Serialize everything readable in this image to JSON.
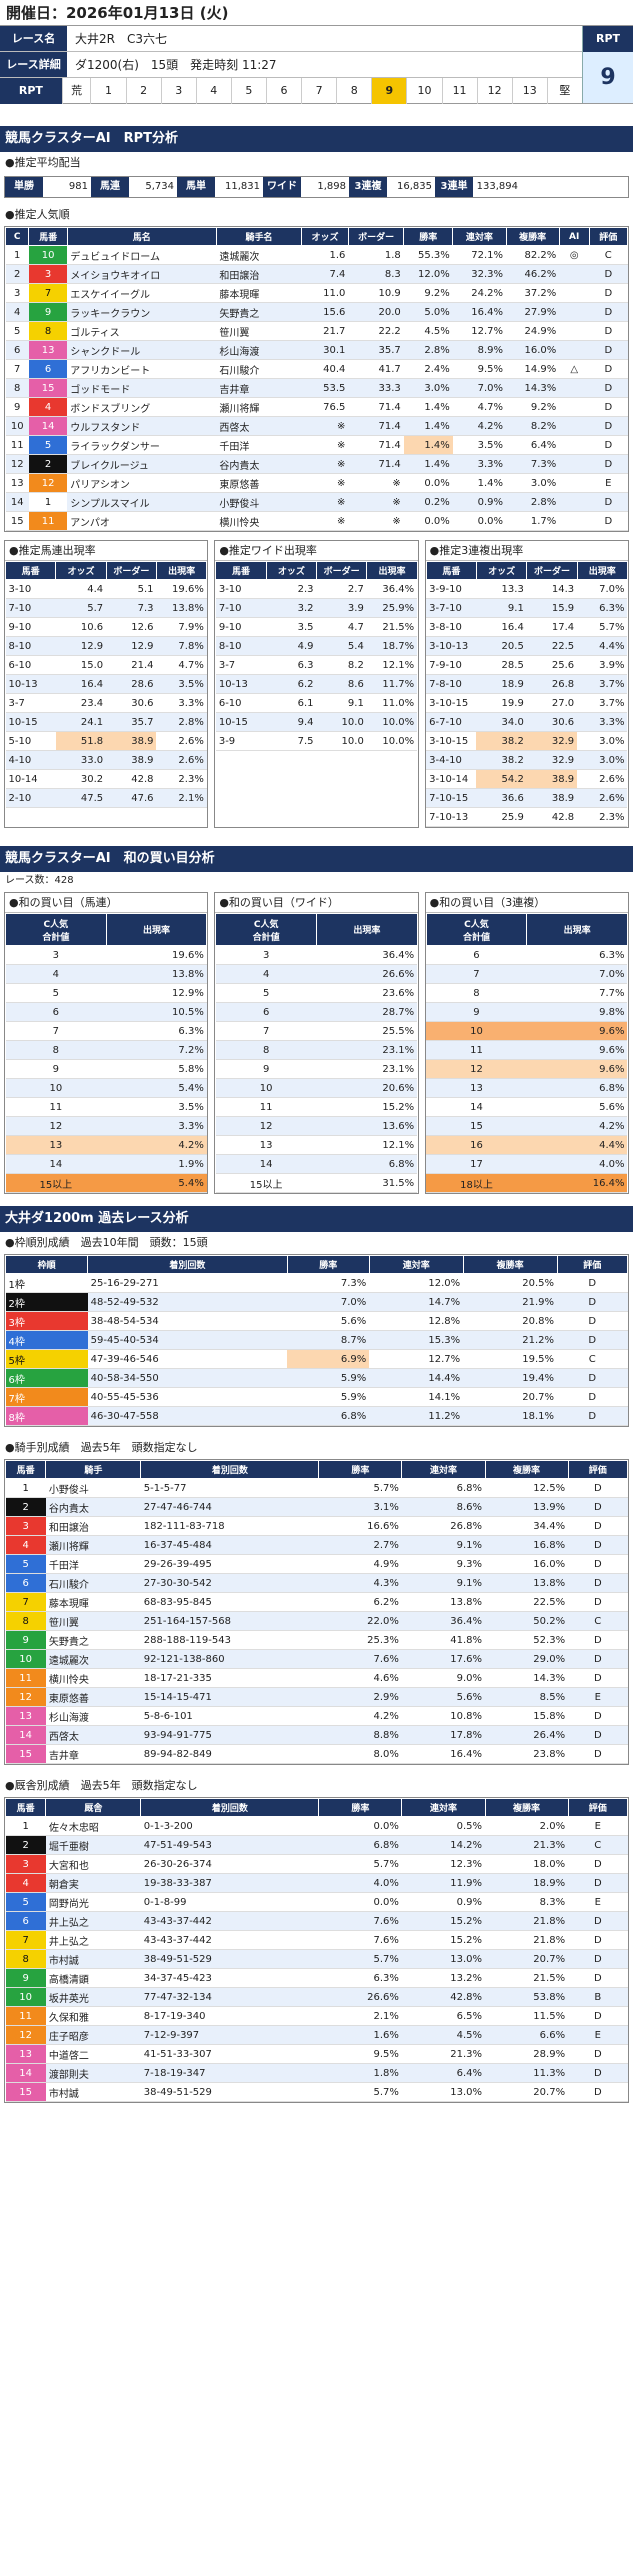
{
  "header": {
    "date": "開催日：2026年01月13日 (火)"
  },
  "race": {
    "name_label": "レース名",
    "name": "大井2R　C3六七",
    "detail_label": "レース詳細",
    "detail": "ダ1200(右)　15頭　発走時刻 11:27",
    "rpt_label": "RPT",
    "rpt_value": "9",
    "rpt_row": [
      "荒",
      "1",
      "2",
      "3",
      "4",
      "5",
      "6",
      "7",
      "8",
      "9",
      "10",
      "11",
      "12",
      "13",
      "堅"
    ],
    "rpt_hi": 9
  },
  "s1": {
    "title": "競馬クラスターAI　RPT分析",
    "pay_title": "●推定平均配当",
    "pay": [
      {
        "k": "単勝",
        "v": "981"
      },
      {
        "k": "馬連",
        "v": "5,734"
      },
      {
        "k": "馬単",
        "v": "11,831"
      },
      {
        "k": "ワイド",
        "v": "1,898"
      },
      {
        "k": "3連複",
        "v": "16,835"
      },
      {
        "k": "3連単",
        "v": "133,894"
      }
    ],
    "pop_title": "●推定人気順",
    "pop_head": [
      "C",
      "馬番",
      "馬名",
      "騎手名",
      "オッズ",
      "ボーダー",
      "勝率",
      "連対率",
      "複勝率",
      "AI",
      "評価"
    ],
    "pop": [
      [
        "1",
        "10",
        "デュビュイドローム",
        "遠城麗次",
        "1.6",
        "1.8",
        "55.3%",
        "72.1%",
        "82.2%",
        "◎",
        "C"
      ],
      [
        "2",
        "3",
        "メイショウキオイロ",
        "和田譲治",
        "7.4",
        "8.3",
        "12.0%",
        "32.3%",
        "46.2%",
        "",
        "D"
      ],
      [
        "3",
        "7",
        "エスケイイーグル",
        "藤本現暉",
        "11.0",
        "10.9",
        "9.2%",
        "24.2%",
        "37.2%",
        "",
        "D"
      ],
      [
        "4",
        "9",
        "ラッキークラウン",
        "矢野貴之",
        "15.6",
        "20.0",
        "5.0%",
        "16.4%",
        "27.9%",
        "",
        "D"
      ],
      [
        "5",
        "8",
        "ゴルティス",
        "笹川翼",
        "21.7",
        "22.2",
        "4.5%",
        "12.7%",
        "24.9%",
        "",
        "D"
      ],
      [
        "6",
        "13",
        "シャンクドール",
        "杉山海渡",
        "30.1",
        "35.7",
        "2.8%",
        "8.9%",
        "16.0%",
        "",
        "D"
      ],
      [
        "7",
        "6",
        "アフリカンビート",
        "石川駿介",
        "40.4",
        "41.7",
        "2.4%",
        "9.5%",
        "14.9%",
        "△",
        "D"
      ],
      [
        "8",
        "15",
        "ゴッドモード",
        "吉井章",
        "53.5",
        "33.3",
        "3.0%",
        "7.0%",
        "14.3%",
        "",
        "D"
      ],
      [
        "9",
        "4",
        "ボンドスブリング",
        "瀬川将輝",
        "76.5",
        "71.4",
        "1.4%",
        "4.7%",
        "9.2%",
        "",
        "D"
      ],
      [
        "10",
        "14",
        "ウルフスタンド",
        "西啓太",
        "※",
        "71.4",
        "1.4%",
        "4.2%",
        "8.2%",
        "",
        "D"
      ],
      [
        "11",
        "5",
        "ライラックダンサー",
        "千田洋",
        "※",
        "71.4",
        "1.4%",
        "3.5%",
        "6.4%",
        "",
        "D"
      ],
      [
        "12",
        "2",
        "ブレイクルージュ",
        "谷内貴太",
        "※",
        "71.4",
        "1.4%",
        "3.3%",
        "7.3%",
        "",
        "D"
      ],
      [
        "13",
        "12",
        "パリアシオン",
        "東原悠善",
        "※",
        "※",
        "0.0%",
        "1.4%",
        "3.0%",
        "",
        "E"
      ],
      [
        "14",
        "1",
        "シンプルスマイル",
        "小野俊斗",
        "※",
        "※",
        "0.2%",
        "0.9%",
        "2.8%",
        "",
        "D"
      ],
      [
        "15",
        "11",
        "アンパオ",
        "横川怜央",
        "※",
        "※",
        "0.0%",
        "0.0%",
        "1.7%",
        "",
        "D"
      ]
    ],
    "umaren_title": "●推定馬連出現率",
    "wide_title": "●推定ワイド出現率",
    "sanfuku_title": "●推定3連複出現率",
    "mini_head": [
      "馬番",
      "オッズ",
      "ボーダー",
      "出現率"
    ],
    "umaren": [
      [
        "3-10",
        "4.4",
        "5.1",
        "19.6%"
      ],
      [
        "7-10",
        "5.7",
        "7.3",
        "13.8%"
      ],
      [
        "9-10",
        "10.6",
        "12.6",
        "7.9%"
      ],
      [
        "8-10",
        "12.9",
        "12.9",
        "7.8%"
      ],
      [
        "6-10",
        "15.0",
        "21.4",
        "4.7%"
      ],
      [
        "10-13",
        "16.4",
        "28.6",
        "3.5%"
      ],
      [
        "3-7",
        "23.4",
        "30.6",
        "3.3%"
      ],
      [
        "10-15",
        "24.1",
        "35.7",
        "2.8%"
      ],
      [
        "5-10",
        "51.8",
        "38.9",
        "2.6%"
      ],
      [
        "4-10",
        "33.0",
        "38.9",
        "2.6%"
      ],
      [
        "10-14",
        "30.2",
        "42.8",
        "2.3%"
      ],
      [
        "2-10",
        "47.5",
        "47.6",
        "2.1%"
      ]
    ],
    "wide": [
      [
        "3-10",
        "2.3",
        "2.7",
        "36.4%"
      ],
      [
        "7-10",
        "3.2",
        "3.9",
        "25.9%"
      ],
      [
        "9-10",
        "3.5",
        "4.7",
        "21.5%"
      ],
      [
        "8-10",
        "4.9",
        "5.4",
        "18.7%"
      ],
      [
        "3-7",
        "6.3",
        "8.2",
        "12.1%"
      ],
      [
        "10-13",
        "6.2",
        "8.6",
        "11.7%"
      ],
      [
        "6-10",
        "6.1",
        "9.1",
        "11.0%"
      ],
      [
        "10-15",
        "9.4",
        "10.0",
        "10.0%"
      ],
      [
        "3-9",
        "7.5",
        "10.0",
        "10.0%"
      ]
    ],
    "sanfuku": [
      [
        "3-9-10",
        "13.3",
        "14.3",
        "7.0%"
      ],
      [
        "3-7-10",
        "9.1",
        "15.9",
        "6.3%"
      ],
      [
        "3-8-10",
        "16.4",
        "17.4",
        "5.7%"
      ],
      [
        "3-10-13",
        "20.5",
        "22.5",
        "4.4%"
      ],
      [
        "7-9-10",
        "28.5",
        "25.6",
        "3.9%"
      ],
      [
        "7-8-10",
        "18.9",
        "26.8",
        "3.7%"
      ],
      [
        "3-10-15",
        "19.9",
        "27.0",
        "3.7%"
      ],
      [
        "6-7-10",
        "34.0",
        "30.6",
        "3.3%"
      ],
      [
        "3-10-15",
        "38.2",
        "32.9",
        "3.0%"
      ],
      [
        "3-4-10",
        "38.2",
        "32.9",
        "3.0%"
      ],
      [
        "3-10-14",
        "54.2",
        "38.9",
        "2.6%"
      ],
      [
        "7-10-15",
        "36.6",
        "38.9",
        "2.6%"
      ],
      [
        "7-10-13",
        "25.9",
        "42.8",
        "2.3%"
      ]
    ]
  },
  "s2": {
    "title": "競馬クラスターAI　和の買い目分析",
    "count": "レース数：428",
    "t1": "●和の買い目（馬連）",
    "t2": "●和の買い目（ワイド）",
    "t3": "●和の買い目（3連複）",
    "h1": "C人気\n合計値",
    "h2": "出現率",
    "umaren": [
      [
        "3",
        "19.6%"
      ],
      [
        "4",
        "13.8%"
      ],
      [
        "5",
        "12.9%"
      ],
      [
        "6",
        "10.5%"
      ],
      [
        "7",
        "6.3%"
      ],
      [
        "8",
        "7.2%"
      ],
      [
        "9",
        "5.8%"
      ],
      [
        "10",
        "5.4%"
      ],
      [
        "11",
        "3.5%"
      ],
      [
        "12",
        "3.3%"
      ],
      [
        "13",
        "4.2%"
      ],
      [
        "14",
        "1.9%"
      ],
      [
        "15以上",
        "5.4%"
      ]
    ],
    "wide": [
      [
        "3",
        "36.4%"
      ],
      [
        "4",
        "26.6%"
      ],
      [
        "5",
        "23.6%"
      ],
      [
        "6",
        "28.7%"
      ],
      [
        "7",
        "25.5%"
      ],
      [
        "8",
        "23.1%"
      ],
      [
        "9",
        "23.1%"
      ],
      [
        "10",
        "20.6%"
      ],
      [
        "11",
        "15.2%"
      ],
      [
        "12",
        "13.6%"
      ],
      [
        "13",
        "12.1%"
      ],
      [
        "14",
        "6.8%"
      ],
      [
        "15以上",
        "31.5%"
      ]
    ],
    "sanfuku": [
      [
        "6",
        "6.3%"
      ],
      [
        "7",
        "7.0%"
      ],
      [
        "8",
        "7.7%"
      ],
      [
        "9",
        "9.8%"
      ],
      [
        "10",
        "9.6%"
      ],
      [
        "11",
        "9.6%"
      ],
      [
        "12",
        "9.6%"
      ],
      [
        "13",
        "6.8%"
      ],
      [
        "14",
        "5.6%"
      ],
      [
        "15",
        "4.2%"
      ],
      [
        "16",
        "4.4%"
      ],
      [
        "17",
        "4.0%"
      ],
      [
        "18以上",
        "16.4%"
      ]
    ]
  },
  "s3": {
    "title": "大井ダ1200m 過去レース分析",
    "waku_title": "●枠順別成績　過去10年間　頭数：15頭",
    "waku_head": [
      "枠順",
      "着別回数",
      "勝率",
      "連対率",
      "複勝率",
      "評価"
    ],
    "waku": [
      [
        "1枠",
        "25-16-29-271",
        "7.3%",
        "12.0%",
        "20.5%",
        "D"
      ],
      [
        "2枠",
        "48-52-49-532",
        "7.0%",
        "14.7%",
        "21.9%",
        "D"
      ],
      [
        "3枠",
        "38-48-54-534",
        "5.6%",
        "12.8%",
        "20.8%",
        "D"
      ],
      [
        "4枠",
        "59-45-40-534",
        "8.7%",
        "15.3%",
        "21.2%",
        "D"
      ],
      [
        "5枠",
        "47-39-46-546",
        "6.9%",
        "12.7%",
        "19.5%",
        "C"
      ],
      [
        "6枠",
        "40-58-34-550",
        "5.9%",
        "14.4%",
        "19.4%",
        "D"
      ],
      [
        "7枠",
        "40-55-45-536",
        "5.9%",
        "14.1%",
        "20.7%",
        "D"
      ],
      [
        "8枠",
        "46-30-47-558",
        "6.8%",
        "11.2%",
        "18.1%",
        "D"
      ]
    ],
    "jockey_title": "●騎手別成績　過去5年　頭数指定なし",
    "trainer_title": "●厩舎別成績　過去5年　頭数指定なし",
    "jk_head": [
      "馬番",
      "騎手",
      "着別回数",
      "勝率",
      "連対率",
      "複勝率",
      "評価"
    ],
    "tr_head": [
      "馬番",
      "厩舎",
      "着別回数",
      "勝率",
      "連対率",
      "複勝率",
      "評価"
    ],
    "jockey": [
      [
        "1",
        "小野俊斗",
        "5-1-5-77",
        "5.7%",
        "6.8%",
        "12.5%",
        "D"
      ],
      [
        "2",
        "谷内貴太",
        "27-47-46-744",
        "3.1%",
        "8.6%",
        "13.9%",
        "D"
      ],
      [
        "3",
        "和田譲治",
        "182-111-83-718",
        "16.6%",
        "26.8%",
        "34.4%",
        "D"
      ],
      [
        "4",
        "瀬川将輝",
        "16-37-45-484",
        "2.7%",
        "9.1%",
        "16.8%",
        "D"
      ],
      [
        "5",
        "千田洋",
        "29-26-39-495",
        "4.9%",
        "9.3%",
        "16.0%",
        "D"
      ],
      [
        "6",
        "石川駿介",
        "27-30-30-542",
        "4.3%",
        "9.1%",
        "13.8%",
        "D"
      ],
      [
        "7",
        "藤本現暉",
        "68-83-95-845",
        "6.2%",
        "13.8%",
        "22.5%",
        "D"
      ],
      [
        "8",
        "笹川翼",
        "251-164-157-568",
        "22.0%",
        "36.4%",
        "50.2%",
        "C"
      ],
      [
        "9",
        "矢野貴之",
        "288-188-119-543",
        "25.3%",
        "41.8%",
        "52.3%",
        "D"
      ],
      [
        "10",
        "遠城麗次",
        "92-121-138-860",
        "7.6%",
        "17.6%",
        "29.0%",
        "D"
      ],
      [
        "11",
        "横川怜央",
        "18-17-21-335",
        "4.6%",
        "9.0%",
        "14.3%",
        "D"
      ],
      [
        "12",
        "東原悠善",
        "15-14-15-471",
        "2.9%",
        "5.6%",
        "8.5%",
        "E"
      ],
      [
        "13",
        "杉山海渡",
        "5-8-6-101",
        "4.2%",
        "10.8%",
        "15.8%",
        "D"
      ],
      [
        "14",
        "西啓太",
        "93-94-91-775",
        "8.8%",
        "17.8%",
        "26.4%",
        "D"
      ],
      [
        "15",
        "吉井章",
        "89-94-82-849",
        "8.0%",
        "16.4%",
        "23.8%",
        "D"
      ]
    ],
    "trainer": [
      [
        "1",
        "佐々木忠昭",
        "0-1-3-200",
        "0.0%",
        "0.5%",
        "2.0%",
        "E"
      ],
      [
        "2",
        "堀千亜樹",
        "47-51-49-543",
        "6.8%",
        "14.2%",
        "21.3%",
        "C"
      ],
      [
        "3",
        "大宮和也",
        "26-30-26-374",
        "5.7%",
        "12.3%",
        "18.0%",
        "D"
      ],
      [
        "4",
        "朝倉実",
        "19-38-33-387",
        "4.0%",
        "11.9%",
        "18.9%",
        "D"
      ],
      [
        "5",
        "岡野尚光",
        "0-1-8-99",
        "0.0%",
        "0.9%",
        "8.3%",
        "E"
      ],
      [
        "6",
        "井上弘之",
        "43-43-37-442",
        "7.6%",
        "15.2%",
        "21.8%",
        "D"
      ],
      [
        "7",
        "井上弘之",
        "43-43-37-442",
        "7.6%",
        "15.2%",
        "21.8%",
        "D"
      ],
      [
        "8",
        "市村誠",
        "38-49-51-529",
        "5.7%",
        "13.0%",
        "20.7%",
        "D"
      ],
      [
        "9",
        "高橋清顕",
        "34-37-45-423",
        "6.3%",
        "13.2%",
        "21.5%",
        "D"
      ],
      [
        "10",
        "坂井英光",
        "77-47-32-134",
        "26.6%",
        "42.8%",
        "53.8%",
        "B"
      ],
      [
        "11",
        "久保和雅",
        "8-17-19-340",
        "2.1%",
        "6.5%",
        "11.5%",
        "D"
      ],
      [
        "12",
        "庄子昭彦",
        "7-12-9-397",
        "1.6%",
        "4.5%",
        "6.6%",
        "E"
      ],
      [
        "13",
        "中道啓二",
        "41-51-33-307",
        "9.5%",
        "21.3%",
        "28.9%",
        "D"
      ],
      [
        "14",
        "渡部則夫",
        "7-18-19-347",
        "1.8%",
        "6.4%",
        "11.3%",
        "D"
      ],
      [
        "15",
        "市村誠",
        "38-49-51-529",
        "5.7%",
        "13.0%",
        "20.7%",
        "D"
      ]
    ]
  },
  "colors": {
    "navy": "#1d3461",
    "waku": [
      "#ffffff",
      "#111111",
      "#e8382f",
      "#2f6fd6",
      "#f5d100",
      "#27a340",
      "#f28a1c",
      "#e55fa8"
    ]
  }
}
